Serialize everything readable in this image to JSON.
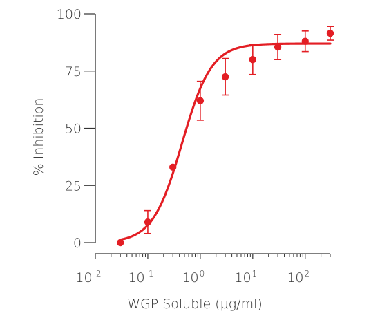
{
  "chart_data": {
    "type": "scatter",
    "xlabel": "WGP Soluble (µg/ml)",
    "ylabel": "% Inhibition",
    "x_scale": "log",
    "xlim": [
      0.01,
      300
    ],
    "ylim": [
      0,
      100
    ],
    "x_ticks": [
      {
        "value": 0.01,
        "base": "10",
        "exp": "-2"
      },
      {
        "value": 0.1,
        "base": "10",
        "exp": "-1"
      },
      {
        "value": 1,
        "base": "10",
        "exp": "0"
      },
      {
        "value": 10,
        "base": "10",
        "exp": "1"
      },
      {
        "value": 100,
        "base": "10",
        "exp": "2"
      }
    ],
    "y_ticks": [
      0,
      25,
      50,
      75,
      100
    ],
    "color": "#e31e24",
    "points": [
      {
        "x": 0.03,
        "y": 0,
        "err": 0
      },
      {
        "x": 0.1,
        "y": 9,
        "err": 5
      },
      {
        "x": 0.3,
        "y": 33,
        "err": 0
      },
      {
        "x": 1,
        "y": 62,
        "err": 8.5
      },
      {
        "x": 3,
        "y": 72.5,
        "err": 8
      },
      {
        "x": 10,
        "y": 80,
        "err": 6.5
      },
      {
        "x": 30,
        "y": 85.5,
        "err": 5.5
      },
      {
        "x": 100,
        "y": 88,
        "err": 4.5
      },
      {
        "x": 300,
        "y": 91.5,
        "err": 3
      }
    ],
    "fit_curve": {
      "bottom": 0,
      "top": 87,
      "ec50": 0.45,
      "hill": 1.55,
      "x_start": 0.03,
      "x_end": 300
    }
  }
}
